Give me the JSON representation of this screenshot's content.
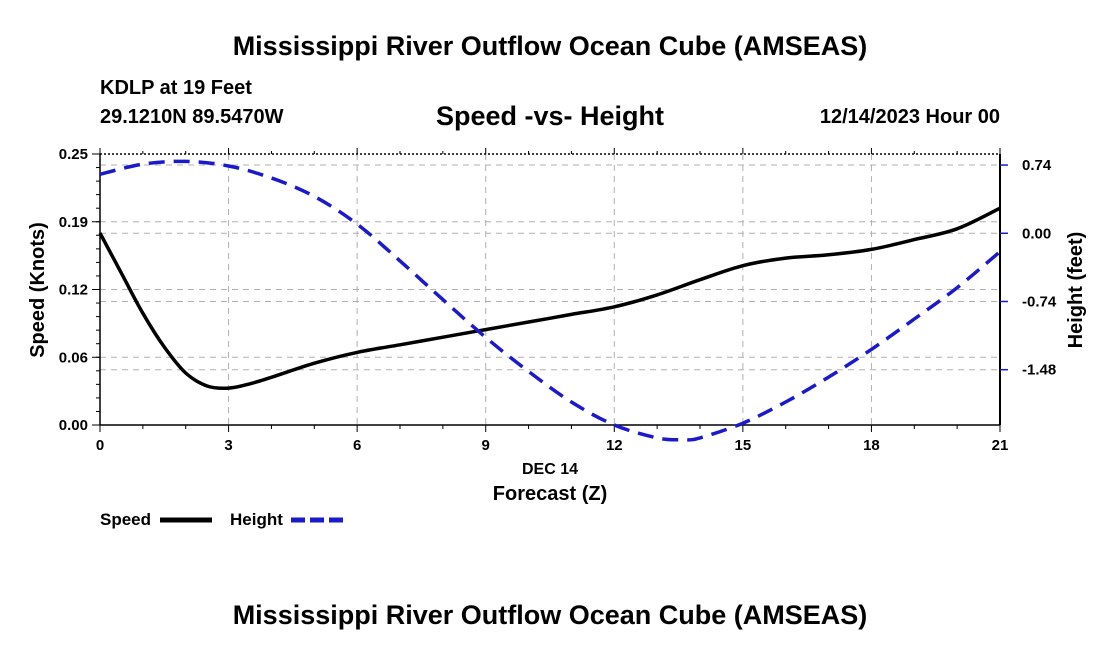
{
  "header": {
    "main_title": "Mississippi River Outflow Ocean Cube (AMSEAS)",
    "station": "KDLP at 19 Feet",
    "coords": "29.1210N  89.5470W",
    "chart_title": "Speed -vs- Height",
    "date": "12/14/2023 Hour 00",
    "repeat_title": "Mississippi River Outflow Ocean Cube (AMSEAS)"
  },
  "legend": {
    "speed_label": "Speed",
    "height_label": "Height"
  },
  "colors": {
    "speed": "#000000",
    "height": "#1a1acc",
    "grid": "#b0b0b0"
  },
  "chart_data": {
    "type": "line",
    "title": "Speed -vs- Height",
    "xlabel": "Forecast (Z)",
    "xlabel_date": "DEC 14",
    "ylabel": "Speed (Knots)",
    "y2label": "Height (feet)",
    "xlim": [
      0,
      21
    ],
    "ylim": [
      0,
      0.25
    ],
    "y2lim": [
      -2.08,
      0.86
    ],
    "x_ticks": [
      0,
      3,
      6,
      9,
      12,
      15,
      18,
      21
    ],
    "x_tick_labels": [
      "0",
      "3",
      "6",
      "9",
      "12",
      "15",
      "18",
      "21"
    ],
    "y_ticks": [
      0,
      0.0625,
      0.125,
      0.1875,
      0.25
    ],
    "y_tick_labels": [
      "0.00",
      "0.06",
      "0.12",
      "0.19",
      "0.25"
    ],
    "y2_ticks": [
      0.74,
      0.0,
      -0.74,
      -1.48
    ],
    "y2_tick_labels": [
      "0.74",
      "0.00",
      "-0.74",
      "-1.48"
    ],
    "grid": true,
    "series": [
      {
        "name": "Speed",
        "axis": "left",
        "style": "solid",
        "x": [
          0,
          0.5,
          1,
          1.5,
          2,
          2.5,
          3,
          3.5,
          4,
          5,
          6,
          7,
          8,
          9,
          10,
          11,
          12,
          13,
          14,
          15,
          16,
          17,
          18,
          19,
          20,
          21
        ],
        "values": [
          0.177,
          0.14,
          0.103,
          0.072,
          0.048,
          0.036,
          0.034,
          0.038,
          0.044,
          0.057,
          0.067,
          0.074,
          0.081,
          0.088,
          0.095,
          0.102,
          0.109,
          0.12,
          0.134,
          0.147,
          0.154,
          0.157,
          0.162,
          0.171,
          0.181,
          0.2
        ]
      },
      {
        "name": "Height",
        "axis": "right",
        "style": "dashed",
        "x": [
          0,
          1,
          2,
          3,
          4,
          5,
          6,
          7,
          8,
          9,
          10,
          11,
          12,
          13,
          13.6,
          14,
          15,
          16,
          17,
          18,
          19,
          20,
          21
        ],
        "values": [
          0.64,
          0.75,
          0.78,
          0.73,
          0.6,
          0.4,
          0.1,
          -0.3,
          -0.72,
          -1.13,
          -1.5,
          -1.83,
          -2.08,
          -2.22,
          -2.24,
          -2.22,
          -2.06,
          -1.83,
          -1.56,
          -1.26,
          -0.93,
          -0.59,
          -0.2
        ]
      }
    ]
  }
}
